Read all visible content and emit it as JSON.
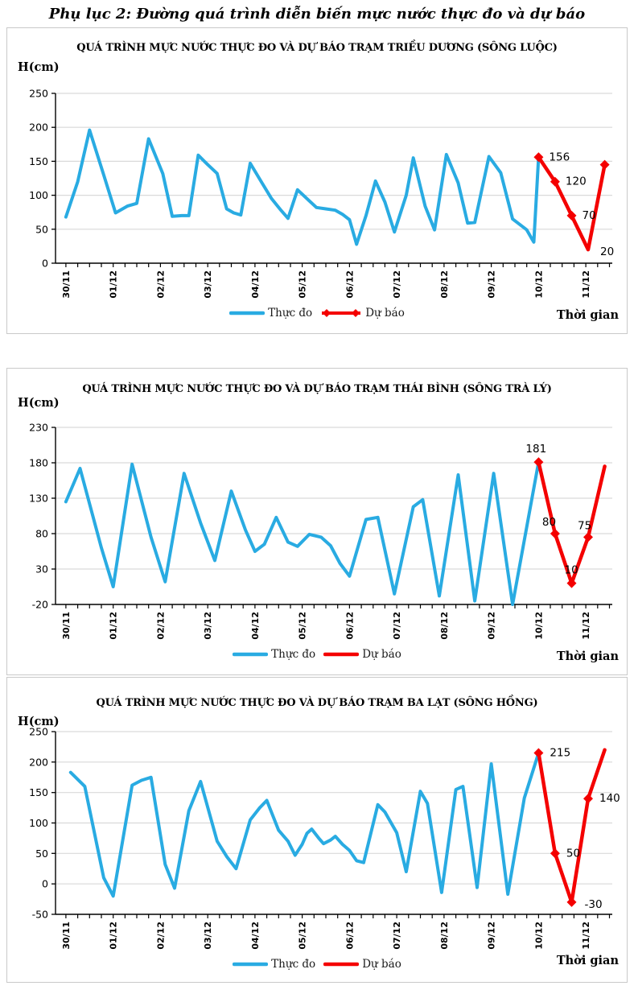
{
  "page": {
    "title": "Phụ lục 2: Đường quá trình diễn biến mực nước thực đo và dự báo"
  },
  "chart_data": [
    {
      "type": "line",
      "title": "QUÁ TRÌNH MỰC NƯỚC THỰC ĐO VÀ DỰ BÁO TRẠM TRIỀU DƯƠNG (SÔNG LUỘC)",
      "ylabel": "H(cm)",
      "xlabel": "Thời gian",
      "ylim": [
        0,
        250
      ],
      "yticks": [
        250,
        200,
        150,
        100,
        50,
        0
      ],
      "x_tick_labels": [
        "30/11",
        "01/12",
        "02/12",
        "03/12",
        "04/12",
        "05/12",
        "06/12",
        "07/12",
        "08/12",
        "09/12",
        "10/12",
        "11/12"
      ],
      "x_unit": "days from 30/11, 4 ticks per day",
      "grid": "horizontal",
      "legend_position": "bottom",
      "series": [
        {
          "name": "Thực đo",
          "color": "#29ABE2",
          "marker": "none",
          "points": [
            [
              0.0,
              68
            ],
            [
              0.25,
              120
            ],
            [
              0.5,
              196
            ],
            [
              0.8,
              130
            ],
            [
              1.05,
              74
            ],
            [
              1.3,
              84
            ],
            [
              1.5,
              88
            ],
            [
              1.75,
              183
            ],
            [
              2.05,
              132
            ],
            [
              2.25,
              69
            ],
            [
              2.45,
              70
            ],
            [
              2.6,
              70
            ],
            [
              2.8,
              159
            ],
            [
              3.0,
              145
            ],
            [
              3.2,
              132
            ],
            [
              3.4,
              80
            ],
            [
              3.55,
              74
            ],
            [
              3.7,
              71
            ],
            [
              3.9,
              147
            ],
            [
              4.15,
              118
            ],
            [
              4.35,
              95
            ],
            [
              4.55,
              78
            ],
            [
              4.7,
              66
            ],
            [
              4.9,
              108
            ],
            [
              5.1,
              95
            ],
            [
              5.3,
              82
            ],
            [
              5.5,
              80
            ],
            [
              5.7,
              78
            ],
            [
              5.85,
              72
            ],
            [
              6.0,
              64
            ],
            [
              6.15,
              28
            ],
            [
              6.35,
              70
            ],
            [
              6.55,
              121
            ],
            [
              6.75,
              90
            ],
            [
              6.95,
              46
            ],
            [
              7.2,
              100
            ],
            [
              7.35,
              155
            ],
            [
              7.6,
              84
            ],
            [
              7.8,
              49
            ],
            [
              8.05,
              160
            ],
            [
              8.3,
              118
            ],
            [
              8.5,
              59
            ],
            [
              8.65,
              60
            ],
            [
              8.95,
              157
            ],
            [
              9.2,
              133
            ],
            [
              9.45,
              65
            ],
            [
              9.75,
              49
            ],
            [
              9.85,
              37
            ],
            [
              9.9,
              31
            ],
            [
              10.0,
              156
            ]
          ]
        },
        {
          "name": "Dự báo",
          "color": "#F40000",
          "marker": "diamond",
          "marker_at": [
            true,
            true,
            true,
            false,
            true
          ],
          "legend_diamond_ends": true,
          "points": [
            [
              10.0,
              156
            ],
            [
              10.35,
              120
            ],
            [
              10.7,
              70
            ],
            [
              11.05,
              20
            ],
            [
              11.4,
              145
            ]
          ],
          "data_labels": [
            {
              "text": "156",
              "x": 10.0,
              "y": 156,
              "dx": 13,
              "dy": 4
            },
            {
              "text": "120",
              "x": 10.35,
              "y": 120,
              "dx": 13,
              "dy": 4
            },
            {
              "text": "70",
              "x": 10.7,
              "y": 70,
              "dx": 13,
              "dy": 4
            },
            {
              "text": "20",
              "x": 11.05,
              "y": 20,
              "dx": 15,
              "dy": 7
            }
          ]
        }
      ]
    },
    {
      "type": "line",
      "title": "QUÁ TRÌNH MỰC NƯỚC THỰC ĐO VÀ DỰ BÁO TRẠM THÁI BÌNH (SÔNG TRÀ LÝ)",
      "ylabel": "H(cm)",
      "xlabel": "Thời gian",
      "ylim": [
        -20,
        230
      ],
      "yticks": [
        230,
        180,
        130,
        80,
        30,
        -20
      ],
      "x_tick_labels": [
        "30/11",
        "01/12",
        "02/12",
        "03/12",
        "04/12",
        "05/12",
        "06/12",
        "07/12",
        "08/12",
        "09/12",
        "10/12",
        "11/12"
      ],
      "x_unit": "days from 30/11, 4 ticks per day",
      "grid": "horizontal",
      "legend_position": "bottom",
      "series": [
        {
          "name": "Thực đo",
          "color": "#29ABE2",
          "marker": "none",
          "points": [
            [
              0.0,
              125
            ],
            [
              0.3,
              172
            ],
            [
              0.75,
              60
            ],
            [
              1.0,
              5
            ],
            [
              1.4,
              178
            ],
            [
              1.8,
              75
            ],
            [
              2.1,
              12
            ],
            [
              2.5,
              165
            ],
            [
              2.85,
              95
            ],
            [
              3.15,
              42
            ],
            [
              3.5,
              140
            ],
            [
              3.8,
              85
            ],
            [
              4.0,
              55
            ],
            [
              4.2,
              65
            ],
            [
              4.45,
              103
            ],
            [
              4.7,
              68
            ],
            [
              4.9,
              62
            ],
            [
              5.15,
              79
            ],
            [
              5.4,
              75
            ],
            [
              5.6,
              63
            ],
            [
              5.8,
              38
            ],
            [
              6.0,
              20
            ],
            [
              6.35,
              100
            ],
            [
              6.6,
              103
            ],
            [
              6.95,
              -5
            ],
            [
              7.35,
              118
            ],
            [
              7.55,
              128
            ],
            [
              7.9,
              -8
            ],
            [
              8.3,
              163
            ],
            [
              8.65,
              -15
            ],
            [
              9.05,
              165
            ],
            [
              9.45,
              -20
            ],
            [
              10.0,
              181
            ]
          ]
        },
        {
          "name": "Dự báo",
          "color": "#F40000",
          "marker": "diamond",
          "marker_at": [
            true,
            true,
            true,
            true,
            false
          ],
          "legend_diamond_ends": false,
          "points": [
            [
              10.0,
              181
            ],
            [
              10.35,
              80
            ],
            [
              10.7,
              10
            ],
            [
              11.05,
              75
            ],
            [
              11.4,
              175
            ]
          ],
          "data_labels": [
            {
              "text": "181",
              "x": 10.0,
              "y": 181,
              "dx": -16,
              "dy": -12
            },
            {
              "text": "80",
              "x": 10.35,
              "y": 80,
              "dx": -16,
              "dy": -10
            },
            {
              "text": "10",
              "x": 10.7,
              "y": 10,
              "dx": -9,
              "dy": -12
            },
            {
              "text": "75",
              "x": 11.05,
              "y": 75,
              "dx": -13,
              "dy": -10
            }
          ]
        }
      ]
    },
    {
      "type": "line",
      "title": "QUÁ TRÌNH MỰC NƯỚC THỰC ĐO VÀ DỰ BÁO TRẠM BA LẠT (SÔNG HỒNG)",
      "ylabel": "H(cm)",
      "xlabel": "Thời gian",
      "ylim": [
        -50,
        250
      ],
      "yticks": [
        250,
        200,
        150,
        100,
        50,
        0,
        -50
      ],
      "x_tick_labels": [
        "30/11",
        "01/12",
        "02/12",
        "03/12",
        "04/12",
        "05/12",
        "06/12",
        "07/12",
        "08/12",
        "09/12",
        "10/12",
        "11/12"
      ],
      "x_unit": "days from 30/11, 4 ticks per day",
      "grid": "horizontal",
      "legend_position": "bottom",
      "series": [
        {
          "name": "Thực đo",
          "color": "#29ABE2",
          "marker": "none",
          "points": [
            [
              0.1,
              183
            ],
            [
              0.4,
              160
            ],
            [
              0.8,
              10
            ],
            [
              1.0,
              -20
            ],
            [
              1.4,
              162
            ],
            [
              1.6,
              170
            ],
            [
              1.8,
              175
            ],
            [
              2.1,
              32
            ],
            [
              2.3,
              -7
            ],
            [
              2.6,
              120
            ],
            [
              2.85,
              168
            ],
            [
              3.2,
              70
            ],
            [
              3.4,
              45
            ],
            [
              3.6,
              25
            ],
            [
              3.9,
              105
            ],
            [
              4.1,
              125
            ],
            [
              4.25,
              137
            ],
            [
              4.5,
              88
            ],
            [
              4.7,
              70
            ],
            [
              4.85,
              47
            ],
            [
              5.0,
              65
            ],
            [
              5.1,
              83
            ],
            [
              5.2,
              90
            ],
            [
              5.35,
              75
            ],
            [
              5.45,
              66
            ],
            [
              5.6,
              72
            ],
            [
              5.7,
              78
            ],
            [
              5.85,
              65
            ],
            [
              6.0,
              55
            ],
            [
              6.15,
              38
            ],
            [
              6.3,
              35
            ],
            [
              6.6,
              130
            ],
            [
              6.75,
              118
            ],
            [
              7.0,
              84
            ],
            [
              7.2,
              20
            ],
            [
              7.5,
              152
            ],
            [
              7.65,
              132
            ],
            [
              7.95,
              -14
            ],
            [
              8.25,
              155
            ],
            [
              8.4,
              160
            ],
            [
              8.7,
              -6
            ],
            [
              9.0,
              197
            ],
            [
              9.35,
              -17
            ],
            [
              9.7,
              141
            ],
            [
              10.0,
              215
            ]
          ]
        },
        {
          "name": "Dự báo",
          "color": "#F40000",
          "marker": "diamond",
          "marker_at": [
            true,
            true,
            true,
            true,
            false
          ],
          "legend_diamond_ends": false,
          "points": [
            [
              10.0,
              215
            ],
            [
              10.35,
              50
            ],
            [
              10.7,
              -30
            ],
            [
              11.05,
              140
            ],
            [
              11.4,
              220
            ]
          ],
          "data_labels": [
            {
              "text": "215",
              "x": 10.0,
              "y": 215,
              "dx": 14,
              "dy": 4
            },
            {
              "text": "50",
              "x": 10.35,
              "y": 50,
              "dx": 14,
              "dy": 4
            },
            {
              "text": "-30",
              "x": 10.7,
              "y": -30,
              "dx": 16,
              "dy": 7
            },
            {
              "text": "140",
              "x": 11.05,
              "y": 140,
              "dx": 14,
              "dy": 4
            }
          ]
        }
      ]
    }
  ]
}
